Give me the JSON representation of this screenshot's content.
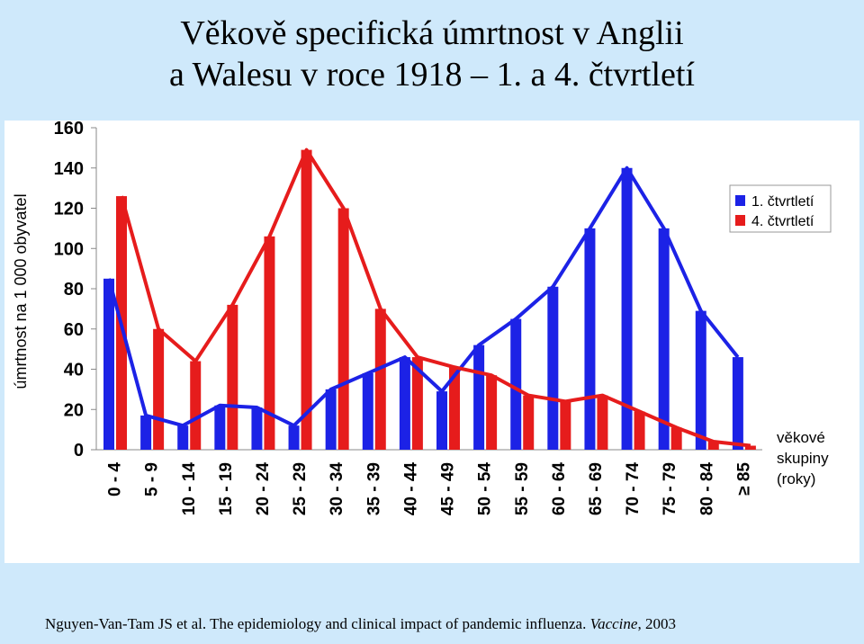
{
  "title": {
    "line1": "Věkově specifická úmrtnost v Anglii",
    "line2": "a Walesu v roce 1918 – 1. a 4. čtvrtletí"
  },
  "caption": {
    "text": "Nguyen-Van-Tam JS et al. The epidemiology and clinical impact of pandemic influenza. ",
    "journal": "Vaccine",
    "year": ", 2003"
  },
  "colors": {
    "series1": "#1c22e6",
    "series2": "#e61c1c",
    "background": "#cfe9fb"
  },
  "chart_data": {
    "type": "bar",
    "ylabel": "úmrtnost na 1 000 obyvatel",
    "xlabel": "věkové skupiny (roky)",
    "ylim": [
      0,
      160
    ],
    "yticks": [
      0,
      20,
      40,
      60,
      80,
      100,
      120,
      140,
      160
    ],
    "legend_position": "top-right",
    "categories": [
      "0 - 4",
      "5 - 9",
      "10 - 14",
      "15 - 19",
      "20 - 24",
      "25 - 29",
      "30 - 34",
      "35 - 39",
      "40 - 44",
      "45 - 49",
      "50 - 54",
      "55 - 59",
      "60 - 64",
      "65 - 69",
      "70 - 74",
      "75 - 79",
      "80 - 84",
      "≥ 85"
    ],
    "series": [
      {
        "name": "1. čtvrtletí",
        "values": [
          85,
          17,
          12,
          22,
          21,
          12,
          30,
          38,
          46,
          29,
          52,
          65,
          81,
          110,
          140,
          110,
          69,
          46
        ]
      },
      {
        "name": "4. čtvrtletí",
        "values": [
          126,
          60,
          44,
          72,
          106,
          149,
          120,
          70,
          46,
          41,
          37,
          27,
          24,
          27,
          19,
          11,
          4,
          2
        ]
      }
    ]
  }
}
